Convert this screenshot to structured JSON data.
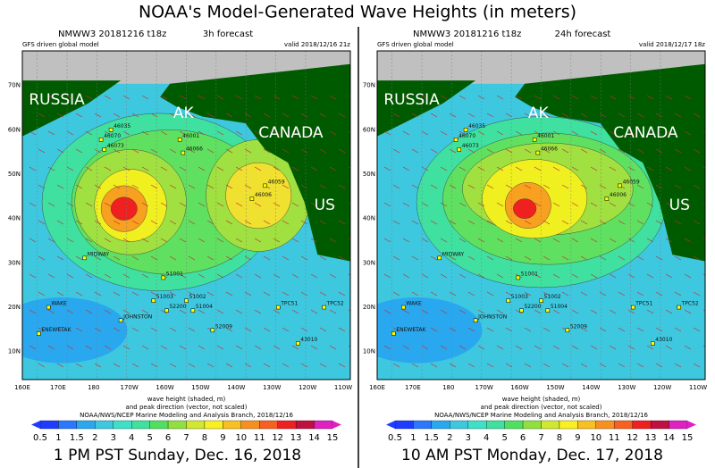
{
  "title": "NOAA's Model-Generated Wave Heights (in meters)",
  "panels": [
    {
      "model": "NMWW3 20181216 t18z",
      "forecast": "3h forecast",
      "driver": "GFS driven global model",
      "valid": "valid 2018/12/16 21z",
      "regions": [
        "RUSSIA",
        "AK",
        "CANADA",
        "US"
      ],
      "caption": "1 PM PST Sunday, Dec. 16, 2018"
    },
    {
      "model": "NMWW3 20181216 t18z",
      "forecast": "24h forecast",
      "driver": "GFS driven global model",
      "valid": "valid 2018/12/17 18z",
      "regions": [
        "RUSSIA",
        "AK",
        "CANADA",
        "US"
      ],
      "caption": "10 AM PST Monday, Dec. 17, 2018"
    }
  ],
  "lat_labels": [
    "70N",
    "60N",
    "50N",
    "40N",
    "30N",
    "20N",
    "10N"
  ],
  "lon_labels": [
    "160E",
    "170E",
    "180",
    "170W",
    "160W",
    "150W",
    "140W",
    "130W",
    "120W",
    "110W"
  ],
  "axis_caption": [
    "wave height (shaded, m)",
    "and peak direction (vector, not scaled)"
  ],
  "credit": "NOAA/NWS/NCEP Marine Modeling and Analysis Branch, 2018/12/16",
  "colorbar": [
    0.5,
    1,
    1.5,
    2,
    3,
    4,
    5,
    6,
    7,
    8,
    9,
    10,
    11,
    12,
    13,
    14,
    15
  ],
  "stations": [
    "46035",
    "46070",
    "46073",
    "46001",
    "46066",
    "46006",
    "46059",
    "51001",
    "51002",
    "51003",
    "51004",
    "52200",
    "WAKE",
    "JOHNSTON",
    "ENEWETAK",
    "MIDWAY",
    "TPC51",
    "TPC52",
    "43010",
    "52009"
  ]
}
